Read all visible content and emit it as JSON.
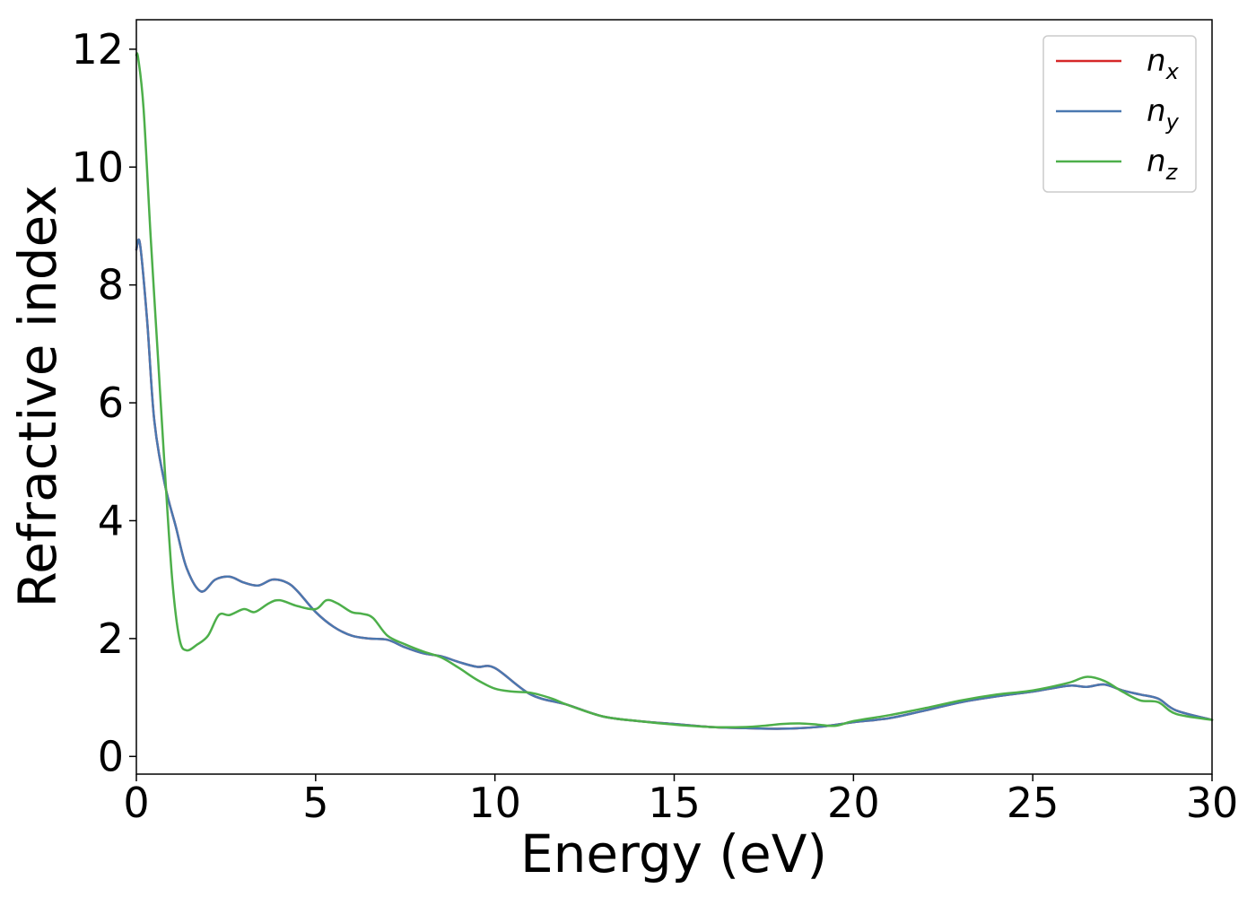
{
  "chart_data": {
    "type": "line",
    "title": "",
    "xlabel": "Energy (eV)",
    "ylabel": "Refractive index",
    "xlim": [
      0,
      30
    ],
    "ylim": [
      -0.3,
      12.5
    ],
    "xticks": [
      0,
      5,
      10,
      15,
      20,
      25,
      30
    ],
    "yticks": [
      0,
      2,
      4,
      6,
      8,
      10,
      12
    ],
    "xtick_labels": [
      "0",
      "5",
      "10",
      "15",
      "20",
      "25",
      "30"
    ],
    "ytick_labels": [
      "0",
      "2",
      "4",
      "6",
      "8",
      "10",
      "12"
    ],
    "grid": false,
    "legend_position": "top-right",
    "series": [
      {
        "name": "n",
        "subscript": "x",
        "color": "#d62728",
        "x": [
          0,
          0.1,
          0.3,
          0.5,
          0.8,
          1.1,
          1.4,
          1.8,
          2.2,
          2.6,
          3.0,
          3.4,
          3.8,
          4.2,
          4.5,
          5.0,
          5.5,
          6.0,
          6.5,
          7.0,
          7.5,
          8.0,
          8.5,
          9.0,
          9.5,
          10.0,
          11.0,
          12.0,
          13.0,
          14.0,
          15.0,
          16.0,
          17.0,
          18.0,
          19.0,
          20.0,
          21.0,
          22.0,
          23.0,
          24.0,
          25.0,
          26.0,
          26.5,
          27.0,
          27.5,
          28.0,
          28.5,
          29.0,
          30.0
        ],
        "y": [
          8.6,
          8.7,
          7.4,
          5.7,
          4.6,
          3.9,
          3.2,
          2.8,
          3.0,
          3.05,
          2.95,
          2.9,
          3.0,
          2.95,
          2.8,
          2.45,
          2.2,
          2.05,
          2.0,
          1.98,
          1.85,
          1.75,
          1.7,
          1.6,
          1.52,
          1.5,
          1.05,
          0.88,
          0.68,
          0.6,
          0.55,
          0.5,
          0.48,
          0.47,
          0.5,
          0.58,
          0.65,
          0.78,
          0.92,
          1.02,
          1.1,
          1.2,
          1.18,
          1.22,
          1.12,
          1.05,
          0.98,
          0.78,
          0.62
        ]
      },
      {
        "name": "n",
        "subscript": "y",
        "color": "#4a78b0",
        "x": [
          0,
          0.1,
          0.3,
          0.5,
          0.8,
          1.1,
          1.4,
          1.8,
          2.2,
          2.6,
          3.0,
          3.4,
          3.8,
          4.2,
          4.5,
          5.0,
          5.5,
          6.0,
          6.5,
          7.0,
          7.5,
          8.0,
          8.5,
          9.0,
          9.5,
          10.0,
          11.0,
          12.0,
          13.0,
          14.0,
          15.0,
          16.0,
          17.0,
          18.0,
          19.0,
          20.0,
          21.0,
          22.0,
          23.0,
          24.0,
          25.0,
          26.0,
          26.5,
          27.0,
          27.5,
          28.0,
          28.5,
          29.0,
          30.0
        ],
        "y": [
          8.6,
          8.7,
          7.4,
          5.7,
          4.6,
          3.9,
          3.2,
          2.8,
          3.0,
          3.05,
          2.95,
          2.9,
          3.0,
          2.95,
          2.8,
          2.45,
          2.2,
          2.05,
          2.0,
          1.98,
          1.85,
          1.75,
          1.7,
          1.6,
          1.52,
          1.5,
          1.05,
          0.88,
          0.68,
          0.6,
          0.55,
          0.5,
          0.48,
          0.47,
          0.5,
          0.58,
          0.65,
          0.78,
          0.92,
          1.02,
          1.1,
          1.2,
          1.18,
          1.22,
          1.12,
          1.05,
          0.98,
          0.78,
          0.62
        ]
      },
      {
        "name": "n",
        "subscript": "z",
        "color": "#4daf4a",
        "x": [
          0,
          0.05,
          0.2,
          0.4,
          0.6,
          0.8,
          1.0,
          1.2,
          1.4,
          1.7,
          2.0,
          2.3,
          2.6,
          3.0,
          3.3,
          3.7,
          4.0,
          4.5,
          5.0,
          5.3,
          5.6,
          6.0,
          6.3,
          6.6,
          7.0,
          7.5,
          8.0,
          8.5,
          9.0,
          9.5,
          10.0,
          10.5,
          11.0,
          11.6,
          12.0,
          13.0,
          14.0,
          15.0,
          16.0,
          17.0,
          17.5,
          18.0,
          18.5,
          19.0,
          19.5,
          20.0,
          21.0,
          22.0,
          23.0,
          24.0,
          25.0,
          26.0,
          26.5,
          27.0,
          27.5,
          28.0,
          28.5,
          29.0,
          30.0
        ],
        "y": [
          11.9,
          11.85,
          11.0,
          8.8,
          6.8,
          4.8,
          3.0,
          2.0,
          1.8,
          1.9,
          2.05,
          2.4,
          2.4,
          2.5,
          2.45,
          2.6,
          2.65,
          2.55,
          2.5,
          2.65,
          2.6,
          2.45,
          2.42,
          2.35,
          2.05,
          1.9,
          1.78,
          1.68,
          1.5,
          1.3,
          1.15,
          1.1,
          1.08,
          0.98,
          0.88,
          0.68,
          0.6,
          0.54,
          0.5,
          0.5,
          0.52,
          0.55,
          0.56,
          0.54,
          0.52,
          0.6,
          0.7,
          0.82,
          0.95,
          1.05,
          1.12,
          1.25,
          1.35,
          1.28,
          1.1,
          0.95,
          0.92,
          0.72,
          0.62
        ]
      }
    ]
  }
}
